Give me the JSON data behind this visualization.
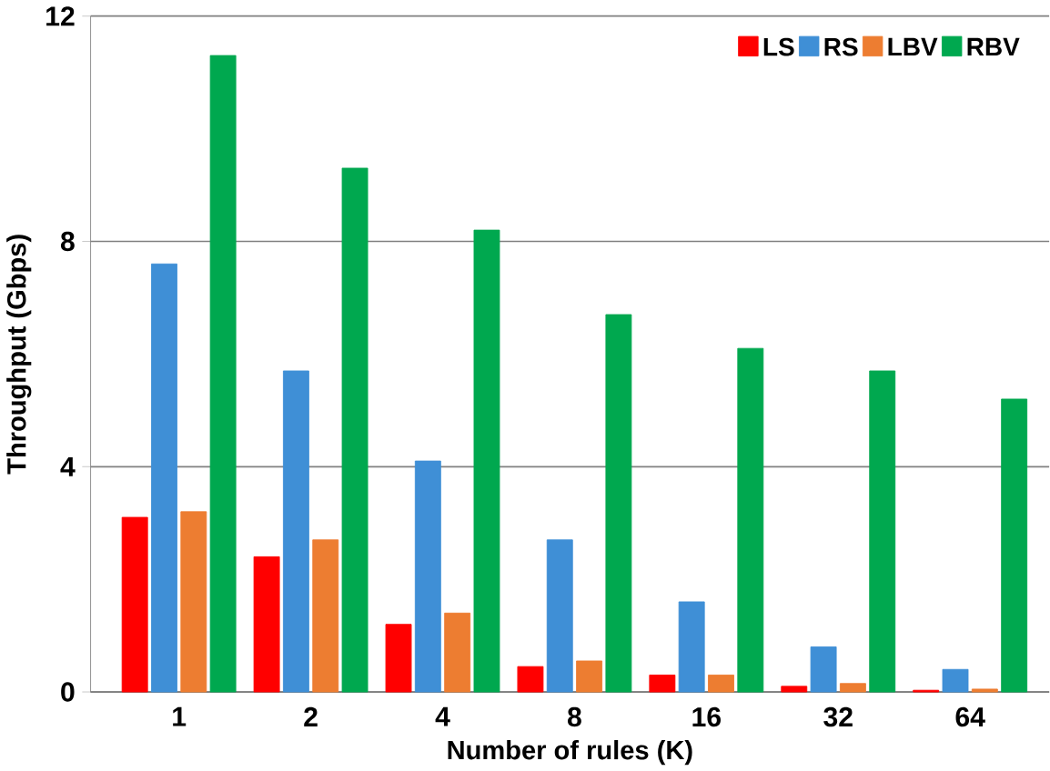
{
  "chart_data": {
    "type": "bar",
    "xlabel": "Number of rules (K)",
    "ylabel": "Throughput (Gbps)",
    "categories": [
      "1",
      "2",
      "4",
      "8",
      "16",
      "32",
      "64"
    ],
    "series": [
      {
        "name": "LS",
        "color": "#ff0000",
        "values": [
          3.1,
          2.4,
          1.2,
          0.45,
          0.3,
          0.1,
          0.03
        ]
      },
      {
        "name": "RS",
        "color": "#3f8fd6",
        "values": [
          7.6,
          5.7,
          4.1,
          2.7,
          1.6,
          0.8,
          0.4
        ]
      },
      {
        "name": "LBV",
        "color": "#ed7d31",
        "values": [
          3.2,
          2.7,
          1.4,
          0.55,
          0.3,
          0.15,
          0.05
        ]
      },
      {
        "name": "RBV",
        "color": "#00a84f",
        "values": [
          11.3,
          9.3,
          8.2,
          6.7,
          6.1,
          5.7,
          5.2
        ]
      }
    ],
    "ylim": [
      0,
      12
    ],
    "yticks": [
      0,
      4,
      8,
      12
    ],
    "grid": "y",
    "legend": "top right"
  }
}
